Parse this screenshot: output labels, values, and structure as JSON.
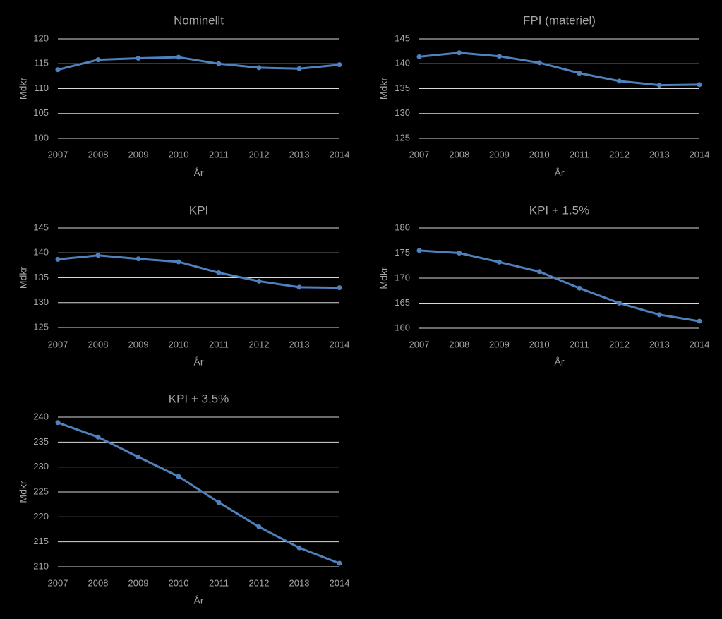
{
  "colors": {
    "background": "#000000",
    "series_line": "#4F81BD",
    "gridline": "#D9D9D9",
    "title_text": "#A6A6A6",
    "axis_text": "#A6A6A6"
  },
  "chart_data": [
    {
      "type": "line",
      "title": "Nominellt",
      "xlabel": "År",
      "ylabel": "Mdkr",
      "x": [
        "2007",
        "2008",
        "2009",
        "2010",
        "2011",
        "2012",
        "2013",
        "2014"
      ],
      "y_ticks": [
        "100",
        "105",
        "110",
        "115",
        "120"
      ],
      "ylim": [
        100,
        120
      ],
      "grid": true,
      "series": [
        {
          "values": [
            113.8,
            115.8,
            116.1,
            116.3,
            115.0,
            114.2,
            114.0,
            114.8
          ]
        }
      ]
    },
    {
      "type": "line",
      "title": "FPI (materiel)",
      "xlabel": "År",
      "ylabel": "Mdkr",
      "x": [
        "2007",
        "2008",
        "2009",
        "2010",
        "2011",
        "2012",
        "2013",
        "2014"
      ],
      "y_ticks": [
        "125",
        "130",
        "135",
        "140",
        "145"
      ],
      "ylim": [
        125,
        145
      ],
      "grid": true,
      "series": [
        {
          "values": [
            141.4,
            142.2,
            141.5,
            140.2,
            138.1,
            136.5,
            135.7,
            135.8
          ]
        }
      ]
    },
    {
      "type": "line",
      "title": "KPI",
      "xlabel": "År",
      "ylabel": "Mdkr",
      "x": [
        "2007",
        "2008",
        "2009",
        "2010",
        "2011",
        "2012",
        "2013",
        "2014"
      ],
      "y_ticks": [
        "125",
        "130",
        "135",
        "140",
        "145"
      ],
      "ylim": [
        125,
        145
      ],
      "grid": true,
      "series": [
        {
          "values": [
            138.7,
            139.5,
            138.8,
            138.2,
            136.0,
            134.3,
            133.1,
            133.0
          ]
        }
      ]
    },
    {
      "type": "line",
      "title": "KPI + 1.5%",
      "xlabel": "År",
      "ylabel": "Mdkr",
      "x": [
        "2007",
        "2008",
        "2009",
        "2010",
        "2011",
        "2012",
        "2013",
        "2014"
      ],
      "y_ticks": [
        "160",
        "165",
        "170",
        "175",
        "180"
      ],
      "ylim": [
        160,
        180
      ],
      "grid": true,
      "series": [
        {
          "values": [
            175.5,
            175.0,
            173.2,
            171.3,
            168.0,
            165.0,
            162.7,
            161.4
          ]
        }
      ]
    },
    {
      "type": "line",
      "title": "KPI + 3,5%",
      "xlabel": "År",
      "ylabel": "Mdkr",
      "x": [
        "2007",
        "2008",
        "2009",
        "2010",
        "2011",
        "2012",
        "2013",
        "2014"
      ],
      "y_ticks": [
        "210",
        "215",
        "220",
        "225",
        "230",
        "235",
        "240"
      ],
      "ylim": [
        210,
        240
      ],
      "grid": true,
      "series": [
        {
          "values": [
            238.9,
            236.0,
            232.0,
            228.1,
            222.9,
            218.0,
            213.8,
            210.7
          ]
        }
      ]
    }
  ]
}
